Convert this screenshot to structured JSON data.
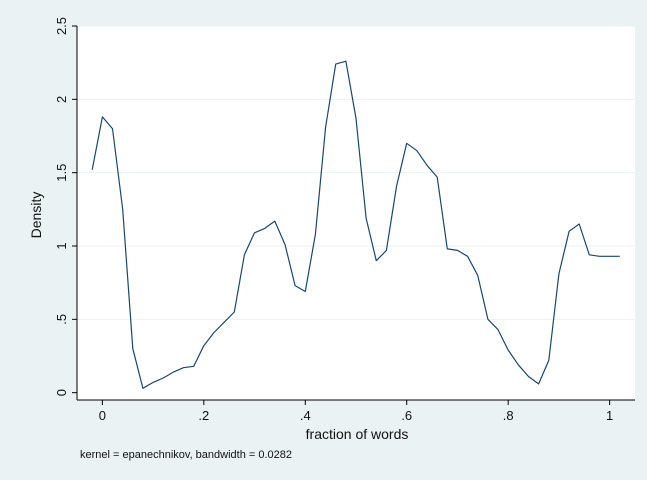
{
  "chart_data": {
    "type": "line",
    "title": "",
    "xlabel": "fraction of words",
    "ylabel": "Density",
    "note": "kernel = epanechnikov, bandwidth = 0.0282",
    "xlim": [
      -0.05,
      1.05
    ],
    "ylim": [
      -0.05,
      2.5
    ],
    "xticks": [
      0,
      0.2,
      0.4,
      0.6,
      0.8,
      1
    ],
    "xtick_labels": [
      "0",
      ".2",
      ".4",
      ".6",
      ".8",
      "1"
    ],
    "yticks": [
      0,
      0.5,
      1,
      1.5,
      2,
      2.5
    ],
    "ytick_labels": [
      "0",
      ".5",
      "1",
      "1.5",
      "2",
      "2.5"
    ],
    "grid": "horizontal",
    "legend": "none",
    "colors": {
      "background": "#eaf2f3",
      "plot_area": "#ffffff",
      "line": "#1a476f",
      "grid": "#eaf2f3"
    },
    "series": [
      {
        "x": [
          -0.02,
          0.0,
          0.02,
          0.04,
          0.06,
          0.08,
          0.1,
          0.12,
          0.14,
          0.16,
          0.18,
          0.2,
          0.22,
          0.24,
          0.26,
          0.28,
          0.3,
          0.32,
          0.34,
          0.36,
          0.38,
          0.4,
          0.42,
          0.44,
          0.46,
          0.48,
          0.5,
          0.52,
          0.54,
          0.56,
          0.58,
          0.6,
          0.62,
          0.64,
          0.66,
          0.68,
          0.7,
          0.72,
          0.74,
          0.76,
          0.78,
          0.8,
          0.82,
          0.84,
          0.86,
          0.88,
          0.9,
          0.92,
          0.94,
          0.96,
          0.98,
          1.0,
          1.02
        ],
        "y": [
          1.52,
          1.88,
          1.8,
          1.25,
          0.3,
          0.03,
          0.07,
          0.1,
          0.14,
          0.17,
          0.18,
          0.32,
          0.41,
          0.48,
          0.55,
          0.94,
          1.09,
          1.12,
          1.17,
          1.01,
          0.73,
          0.69,
          1.08,
          1.81,
          2.24,
          2.26,
          1.87,
          1.19,
          0.9,
          0.97,
          1.41,
          1.7,
          1.65,
          1.55,
          1.47,
          0.98,
          0.97,
          0.93,
          0.8,
          0.5,
          0.43,
          0.29,
          0.19,
          0.11,
          0.06,
          0.22,
          0.81,
          1.1,
          1.15,
          0.94,
          0.93,
          0.93,
          0.93
        ]
      }
    ]
  }
}
